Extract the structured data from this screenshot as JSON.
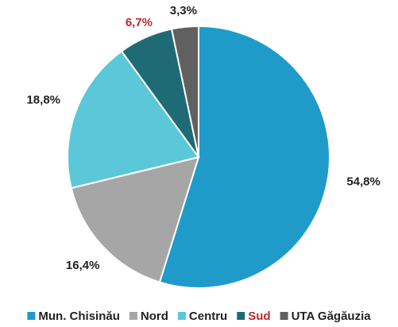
{
  "chart_data": {
    "type": "pie",
    "categories": [
      "Mun. Chisinău",
      "Nord",
      "Centru",
      "Sud",
      "UTA Găgăuzia"
    ],
    "values": [
      54.8,
      16.4,
      18.8,
      6.7,
      3.3
    ],
    "value_labels": [
      "54,8%",
      "16,4%",
      "18,8%",
      "6,7%",
      "3,3%"
    ],
    "colors": [
      "#1f9bc9",
      "#a6a6a6",
      "#5ac8d8",
      "#1f6b75",
      "#606060"
    ],
    "label_colors": [
      "#222222",
      "#222222",
      "#222222",
      "#c0282d",
      "#222222"
    ],
    "legend": "bottom"
  }
}
